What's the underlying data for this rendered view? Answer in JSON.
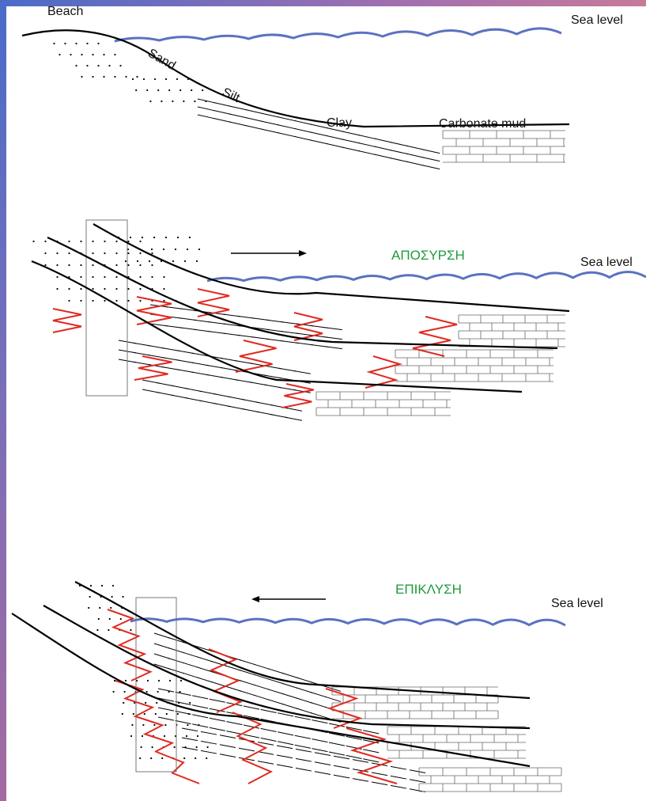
{
  "panels": [
    {
      "labels": {
        "beach": "Beach",
        "sea_level": "Sea level",
        "sand": "Sand",
        "silt": "Silt",
        "clay": "Clay",
        "carbonate_mud": "Carbonate  mud"
      }
    },
    {
      "title": "ΑΠΟΣΥΡΣΗ",
      "sea_level": "Sea level"
    },
    {
      "title": "ΕΠΙΚΛΥΣΗ",
      "sea_level": "Sea level"
    }
  ]
}
